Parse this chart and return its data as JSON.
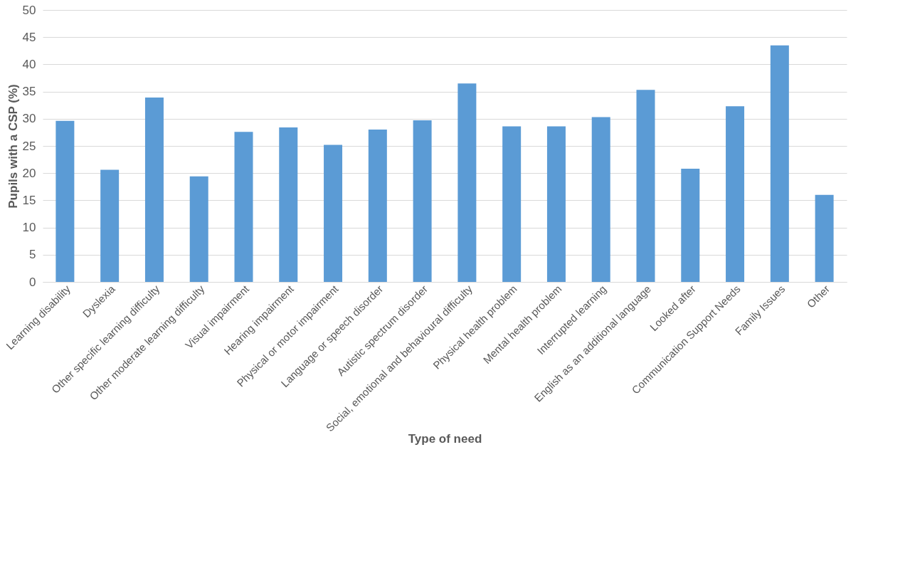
{
  "chart_data": {
    "type": "bar",
    "xlabel": "Type of need",
    "ylabel": "Pupils with a CSP (%)",
    "categories": [
      "Learning disability",
      "Dyslexia",
      "Other specific learning difficulty",
      "Other moderate learning difficulty",
      "Visual impairment",
      "Hearing impairment",
      "Physical or motor impairment",
      "Language or speech disorder",
      "Autistic spectrum disorder",
      "Social, emotional and behavioural difficulty",
      "Physical health problem",
      "Mental health problem",
      "Interrupted learning",
      "English as an additional language",
      "Looked after",
      "Communication Support Needs",
      "Family Issues",
      "Other"
    ],
    "values": [
      29.6,
      20.6,
      33.9,
      19.4,
      27.6,
      28.4,
      25.2,
      28.0,
      29.7,
      36.5,
      28.6,
      28.6,
      30.3,
      35.3,
      20.8,
      32.3,
      43.5,
      16.0
    ],
    "color": "#5b9bd5",
    "ylim": [
      0,
      50
    ],
    "yticks": [
      0,
      5,
      10,
      15,
      20,
      25,
      30,
      35,
      40,
      45,
      50
    ],
    "grid": "y"
  }
}
